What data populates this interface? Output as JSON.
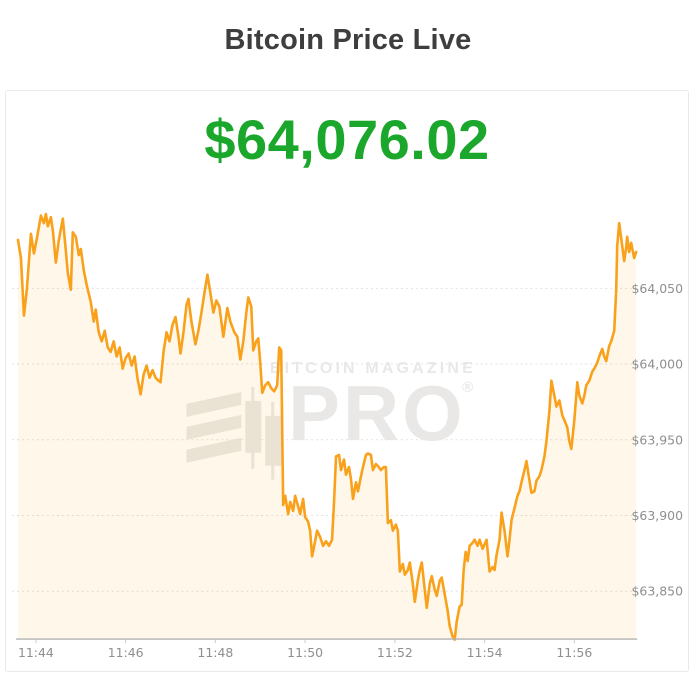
{
  "page": {
    "title": "Bitcoin Price Live"
  },
  "price_display": {
    "value": "$64,076.02",
    "color": "#1ba62c"
  },
  "watermark": {
    "line1": "BITCOIN MAGAZINE",
    "line2": "PRO",
    "registered": "®",
    "color": "#e9e8e6"
  },
  "chart_data": {
    "type": "area",
    "title": "Bitcoin Price Live",
    "latest_price": 64076.02,
    "x_unit": "time of day (HH:MM), stored as decimal minutes after 11:43",
    "y_unit": "USD",
    "line_color": "#f9a11b",
    "fill_color": "rgba(249,161,27,0.09)",
    "grid_color": "#e0e0e0",
    "axis_color": "#b2b2b2",
    "label_color": "#8f8f8f",
    "legend": "none",
    "grid": "dotted horizontal",
    "x_range": [
      0.6,
      14.4
    ],
    "y_range": [
      63810,
      64110
    ],
    "x_ticks": [
      {
        "label": "11:44",
        "t": 1
      },
      {
        "label": "11:46",
        "t": 3
      },
      {
        "label": "11:48",
        "t": 5
      },
      {
        "label": "11:50",
        "t": 7
      },
      {
        "label": "11:52",
        "t": 9
      },
      {
        "label": "11:54",
        "t": 11
      },
      {
        "label": "11:56",
        "t": 13
      }
    ],
    "y_ticks": [
      {
        "label": "$64,050",
        "value": 64050
      },
      {
        "label": "$64,000",
        "value": 64000
      },
      {
        "label": "$63,950",
        "value": 63950
      },
      {
        "label": "$63,900",
        "value": 63900
      },
      {
        "label": "$63,850",
        "value": 63850
      }
    ],
    "points": [
      [
        0.6,
        64082
      ],
      [
        0.667,
        64070
      ],
      [
        0.733,
        64032
      ],
      [
        0.8,
        64050
      ],
      [
        0.889,
        64086
      ],
      [
        0.956,
        64073
      ],
      [
        1.022,
        64083
      ],
      [
        1.111,
        64098
      ],
      [
        1.178,
        64093
      ],
      [
        1.222,
        64099
      ],
      [
        1.267,
        64091
      ],
      [
        1.333,
        64097
      ],
      [
        1.378,
        64088
      ],
      [
        1.444,
        64067
      ],
      [
        1.511,
        64082
      ],
      [
        1.6,
        64096
      ],
      [
        1.667,
        64075
      ],
      [
        1.711,
        64060
      ],
      [
        1.778,
        64049
      ],
      [
        1.822,
        64087
      ],
      [
        1.889,
        64084
      ],
      [
        1.956,
        64072
      ],
      [
        2.0,
        64076
      ],
      [
        2.067,
        64062
      ],
      [
        2.133,
        64052
      ],
      [
        2.222,
        64041
      ],
      [
        2.289,
        64028
      ],
      [
        2.333,
        64036
      ],
      [
        2.4,
        64021
      ],
      [
        2.467,
        64015
      ],
      [
        2.533,
        64022
      ],
      [
        2.6,
        64011
      ],
      [
        2.667,
        64008
      ],
      [
        2.733,
        64015
      ],
      [
        2.8,
        64005
      ],
      [
        2.867,
        64011
      ],
      [
        2.933,
        63997
      ],
      [
        3.0,
        64004
      ],
      [
        3.067,
        64007
      ],
      [
        3.133,
        63999
      ],
      [
        3.2,
        64005
      ],
      [
        3.267,
        63990
      ],
      [
        3.333,
        63980
      ],
      [
        3.4,
        63993
      ],
      [
        3.467,
        63999
      ],
      [
        3.533,
        63991
      ],
      [
        3.6,
        63996
      ],
      [
        3.667,
        63991
      ],
      [
        3.733,
        63989
      ],
      [
        3.778,
        63988
      ],
      [
        3.844,
        64008
      ],
      [
        3.911,
        64021
      ],
      [
        3.978,
        64015
      ],
      [
        4.044,
        64026
      ],
      [
        4.111,
        64031
      ],
      [
        4.178,
        64018
      ],
      [
        4.222,
        64007
      ],
      [
        4.289,
        64021
      ],
      [
        4.356,
        64039
      ],
      [
        4.4,
        64043
      ],
      [
        4.467,
        64028
      ],
      [
        4.556,
        64013
      ],
      [
        4.622,
        64022
      ],
      [
        4.689,
        64034
      ],
      [
        4.756,
        64047
      ],
      [
        4.822,
        64059
      ],
      [
        4.889,
        64047
      ],
      [
        4.956,
        64034
      ],
      [
        5.022,
        64042
      ],
      [
        5.089,
        64038
      ],
      [
        5.178,
        64018
      ],
      [
        5.267,
        64037
      ],
      [
        5.333,
        64028
      ],
      [
        5.422,
        64021
      ],
      [
        5.489,
        64018
      ],
      [
        5.556,
        64003
      ],
      [
        5.622,
        64015
      ],
      [
        5.689,
        64034
      ],
      [
        5.733,
        64044
      ],
      [
        5.8,
        64038
      ],
      [
        5.844,
        64009
      ],
      [
        5.911,
        64015
      ],
      [
        5.956,
        64017
      ],
      [
        6.0,
        64001
      ],
      [
        6.044,
        63981
      ],
      [
        6.111,
        63986
      ],
      [
        6.178,
        63988
      ],
      [
        6.244,
        63984
      ],
      [
        6.311,
        63982
      ],
      [
        6.378,
        63986
      ],
      [
        6.422,
        64011
      ],
      [
        6.467,
        64009
      ],
      [
        6.511,
        63907
      ],
      [
        6.556,
        63913
      ],
      [
        6.622,
        63901
      ],
      [
        6.667,
        63909
      ],
      [
        6.733,
        63903
      ],
      [
        6.778,
        63913
      ],
      [
        6.844,
        63906
      ],
      [
        6.889,
        63901
      ],
      [
        6.956,
        63911
      ],
      [
        7.0,
        63899
      ],
      [
        7.067,
        63896
      ],
      [
        7.111,
        63890
      ],
      [
        7.156,
        63873
      ],
      [
        7.222,
        63883
      ],
      [
        7.267,
        63890
      ],
      [
        7.333,
        63886
      ],
      [
        7.4,
        63880
      ],
      [
        7.467,
        63883
      ],
      [
        7.533,
        63880
      ],
      [
        7.6,
        63884
      ],
      [
        7.644,
        63909
      ],
      [
        7.689,
        63939
      ],
      [
        7.756,
        63940
      ],
      [
        7.8,
        63930
      ],
      [
        7.867,
        63937
      ],
      [
        7.911,
        63927
      ],
      [
        7.978,
        63932
      ],
      [
        8.022,
        63924
      ],
      [
        8.067,
        63911
      ],
      [
        8.133,
        63922
      ],
      [
        8.178,
        63916
      ],
      [
        8.244,
        63926
      ],
      [
        8.289,
        63932
      ],
      [
        8.356,
        63940
      ],
      [
        8.4,
        63941
      ],
      [
        8.467,
        63940
      ],
      [
        8.511,
        63930
      ],
      [
        8.578,
        63934
      ],
      [
        8.644,
        63932
      ],
      [
        8.689,
        63930
      ],
      [
        8.756,
        63932
      ],
      [
        8.8,
        63932
      ],
      [
        8.844,
        63895
      ],
      [
        8.911,
        63897
      ],
      [
        8.956,
        63890
      ],
      [
        9.022,
        63894
      ],
      [
        9.067,
        63890
      ],
      [
        9.111,
        63863
      ],
      [
        9.178,
        63868
      ],
      [
        9.222,
        63861
      ],
      [
        9.289,
        63864
      ],
      [
        9.333,
        63869
      ],
      [
        9.4,
        63855
      ],
      [
        9.444,
        63843
      ],
      [
        9.511,
        63857
      ],
      [
        9.556,
        63864
      ],
      [
        9.6,
        63869
      ],
      [
        9.667,
        63851
      ],
      [
        9.711,
        63839
      ],
      [
        9.778,
        63855
      ],
      [
        9.822,
        63860
      ],
      [
        9.889,
        63851
      ],
      [
        9.933,
        63847
      ],
      [
        10.0,
        63857
      ],
      [
        10.044,
        63859
      ],
      [
        10.111,
        63848
      ],
      [
        10.178,
        63837
      ],
      [
        10.222,
        63827
      ],
      [
        10.289,
        63820
      ],
      [
        10.333,
        63818
      ],
      [
        10.378,
        63830
      ],
      [
        10.444,
        63840
      ],
      [
        10.489,
        63841
      ],
      [
        10.533,
        63864
      ],
      [
        10.578,
        63876
      ],
      [
        10.622,
        63870
      ],
      [
        10.667,
        63880
      ],
      [
        10.733,
        63882
      ],
      [
        10.778,
        63884
      ],
      [
        10.844,
        63880
      ],
      [
        10.889,
        63884
      ],
      [
        10.956,
        63878
      ],
      [
        11.0,
        63881
      ],
      [
        11.044,
        63884
      ],
      [
        11.111,
        63863
      ],
      [
        11.178,
        63866
      ],
      [
        11.222,
        63864
      ],
      [
        11.267,
        63874
      ],
      [
        11.333,
        63884
      ],
      [
        11.378,
        63902
      ],
      [
        11.444,
        63890
      ],
      [
        11.511,
        63873
      ],
      [
        11.556,
        63884
      ],
      [
        11.6,
        63897
      ],
      [
        11.667,
        63905
      ],
      [
        11.733,
        63913
      ],
      [
        11.778,
        63916
      ],
      [
        11.822,
        63922
      ],
      [
        11.889,
        63930
      ],
      [
        11.933,
        63936
      ],
      [
        12.0,
        63923
      ],
      [
        12.044,
        63915
      ],
      [
        12.111,
        63916
      ],
      [
        12.156,
        63923
      ],
      [
        12.222,
        63926
      ],
      [
        12.267,
        63930
      ],
      [
        12.333,
        63939
      ],
      [
        12.378,
        63949
      ],
      [
        12.444,
        63969
      ],
      [
        12.489,
        63989
      ],
      [
        12.556,
        63979
      ],
      [
        12.6,
        63972
      ],
      [
        12.667,
        63976
      ],
      [
        12.733,
        63966
      ],
      [
        12.778,
        63963
      ],
      [
        12.844,
        63958
      ],
      [
        12.889,
        63949
      ],
      [
        12.933,
        63944
      ],
      [
        13.0,
        63963
      ],
      [
        13.067,
        63988
      ],
      [
        13.111,
        63979
      ],
      [
        13.178,
        63974
      ],
      [
        13.222,
        63979
      ],
      [
        13.267,
        63986
      ],
      [
        13.333,
        63989
      ],
      [
        13.4,
        63995
      ],
      [
        13.444,
        63997
      ],
      [
        13.511,
        64001
      ],
      [
        13.556,
        64005
      ],
      [
        13.622,
        64010
      ],
      [
        13.667,
        64005
      ],
      [
        13.711,
        64002
      ],
      [
        13.778,
        64012
      ],
      [
        13.822,
        64015
      ],
      [
        13.889,
        64022
      ],
      [
        13.933,
        64049
      ],
      [
        13.956,
        64078
      ],
      [
        14.0,
        64093
      ],
      [
        14.044,
        64083
      ],
      [
        14.111,
        64068
      ],
      [
        14.156,
        64077
      ],
      [
        14.178,
        64084
      ],
      [
        14.222,
        64074
      ],
      [
        14.267,
        64080
      ],
      [
        14.333,
        64070
      ],
      [
        14.378,
        64074
      ]
    ]
  }
}
